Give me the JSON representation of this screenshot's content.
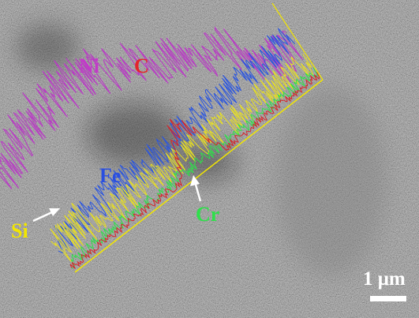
{
  "labels": [
    {
      "text": "Ni"
    },
    {
      "text": "C"
    },
    {
      "text": "Fe"
    },
    {
      "text": "Cr"
    },
    {
      "text": "Si"
    }
  ],
  "scale_bar": {
    "label": "1 μm"
  }
}
